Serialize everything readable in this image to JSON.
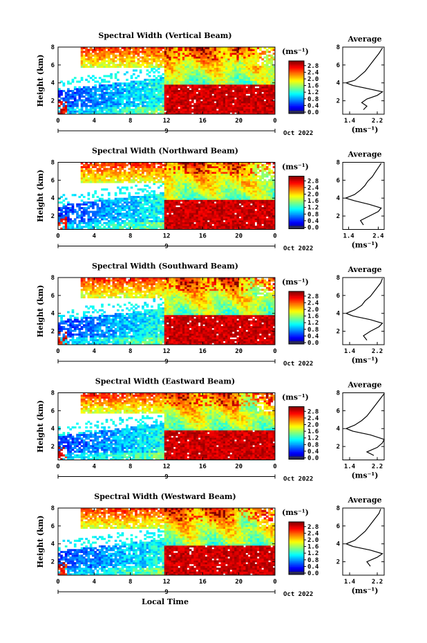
{
  "chart_data": [
    {
      "type": "heatmap",
      "title": "Spectral Width (Vertical Beam)",
      "ylabel": "Height (km)",
      "xlabel": "",
      "x_ticks": [
        "0",
        "4",
        "8",
        "12",
        "16",
        "20",
        "0"
      ],
      "y_ticks": [
        "2",
        "4",
        "6",
        "8"
      ],
      "ylim": [
        0.5,
        8
      ],
      "xlim": [
        0,
        24
      ],
      "date_marker": "9",
      "date_label": "Oct 2022",
      "colorbar": {
        "unit": "(ms⁻¹)",
        "ticks": [
          "0.0",
          "0.4",
          "0.8",
          "1.2",
          "1.6",
          "2.0",
          "2.4",
          "2.8"
        ],
        "range": [
          0,
          3.0
        ]
      },
      "average_profile": {
        "title": "Average",
        "xlabel": "(ms⁻¹)",
        "x_ticks": [
          "1.4",
          "2.2"
        ],
        "xlim": [
          1.2,
          2.4
        ],
        "y_ticks": [
          "2",
          "4",
          "6",
          "8"
        ],
        "points": [
          [
            1.8,
            1.0
          ],
          [
            1.9,
            1.4
          ],
          [
            1.75,
            1.8
          ],
          [
            1.9,
            2.2
          ],
          [
            2.2,
            2.6
          ],
          [
            2.35,
            3.0
          ],
          [
            2.0,
            3.3
          ],
          [
            1.5,
            3.7
          ],
          [
            1.3,
            4.0
          ],
          [
            1.55,
            4.3
          ],
          [
            1.7,
            4.8
          ],
          [
            1.85,
            5.3
          ],
          [
            1.95,
            5.8
          ],
          [
            2.05,
            6.3
          ],
          [
            2.15,
            6.8
          ],
          [
            2.25,
            7.3
          ],
          [
            2.35,
            7.9
          ]
        ]
      }
    },
    {
      "type": "heatmap",
      "title": "Spectral Width (Northward Beam)",
      "ylabel": "Height (km)",
      "xlabel": "",
      "x_ticks": [
        "0",
        "4",
        "8",
        "12",
        "16",
        "20",
        "0"
      ],
      "y_ticks": [
        "2",
        "4",
        "6",
        "8"
      ],
      "ylim": [
        0.5,
        8
      ],
      "xlim": [
        0,
        24
      ],
      "date_marker": "9",
      "date_label": "Oct 2022",
      "colorbar": {
        "unit": "(ms⁻¹)",
        "ticks": [
          "0.0",
          "0.4",
          "0.8",
          "1.2",
          "1.6",
          "2.0",
          "2.4",
          "2.8"
        ],
        "range": [
          0,
          3.0
        ]
      },
      "average_profile": {
        "title": "Average",
        "xlabel": "(ms⁻¹)",
        "x_ticks": [
          "1.4",
          "2.4"
        ],
        "xlim": [
          1.2,
          2.6
        ],
        "y_ticks": [
          "2",
          "4",
          "6",
          "8"
        ],
        "points": [
          [
            1.9,
            1.0
          ],
          [
            1.8,
            1.5
          ],
          [
            2.1,
            2.0
          ],
          [
            2.4,
            2.5
          ],
          [
            2.5,
            2.9
          ],
          [
            2.1,
            3.3
          ],
          [
            1.6,
            3.7
          ],
          [
            1.3,
            4.0
          ],
          [
            1.6,
            4.4
          ],
          [
            1.8,
            4.9
          ],
          [
            1.95,
            5.4
          ],
          [
            2.05,
            5.9
          ],
          [
            2.2,
            6.4
          ],
          [
            2.3,
            6.9
          ],
          [
            2.4,
            7.4
          ],
          [
            2.5,
            7.9
          ]
        ]
      }
    },
    {
      "type": "heatmap",
      "title": "Spectral Width (Southward Beam)",
      "ylabel": "Height (km)",
      "xlabel": "",
      "x_ticks": [
        "0",
        "4",
        "8",
        "12",
        "16",
        "20",
        "0"
      ],
      "y_ticks": [
        "2",
        "4",
        "6",
        "8"
      ],
      "ylim": [
        0.5,
        8
      ],
      "xlim": [
        0,
        24
      ],
      "date_marker": "9",
      "date_label": "Oct 2022",
      "colorbar": {
        "unit": "(ms⁻¹)",
        "ticks": [
          "0.0",
          "0.4",
          "0.8",
          "1.2",
          "1.6",
          "2.0",
          "2.4",
          "2.8"
        ],
        "range": [
          0,
          3.0
        ]
      },
      "average_profile": {
        "title": "Average",
        "xlabel": "(ms⁻¹)",
        "x_ticks": [
          "1.4",
          "2.2"
        ],
        "xlim": [
          1.2,
          2.4
        ],
        "y_ticks": [
          "2",
          "4",
          "6",
          "8"
        ],
        "points": [
          [
            1.9,
            1.0
          ],
          [
            1.8,
            1.5
          ],
          [
            2.0,
            2.0
          ],
          [
            2.25,
            2.5
          ],
          [
            2.35,
            2.9
          ],
          [
            2.0,
            3.3
          ],
          [
            1.5,
            3.7
          ],
          [
            1.3,
            4.0
          ],
          [
            1.55,
            4.4
          ],
          [
            1.75,
            4.9
          ],
          [
            1.85,
            5.4
          ],
          [
            2.0,
            5.9
          ],
          [
            2.1,
            6.4
          ],
          [
            2.2,
            6.9
          ],
          [
            2.3,
            7.4
          ],
          [
            2.35,
            7.9
          ]
        ]
      }
    },
    {
      "type": "heatmap",
      "title": "Spectral Width (Eastward Beam)",
      "ylabel": "Height (km)",
      "xlabel": "",
      "x_ticks": [
        "0",
        "4",
        "8",
        "12",
        "16",
        "20",
        "0"
      ],
      "y_ticks": [
        "2",
        "4",
        "6",
        "8"
      ],
      "ylim": [
        0.5,
        8
      ],
      "xlim": [
        0,
        24
      ],
      "date_marker": "9",
      "date_label": "Oct 2022",
      "colorbar": {
        "unit": "(ms⁻¹)",
        "ticks": [
          "0.0",
          "0.4",
          "0.8",
          "1.2",
          "1.6",
          "2.0",
          "2.4",
          "2.8"
        ],
        "range": [
          0,
          3.0
        ]
      },
      "average_profile": {
        "title": "Average",
        "xlabel": "(ms⁻¹)",
        "x_ticks": [
          "1.4",
          "2.2"
        ],
        "xlim": [
          1.2,
          2.4
        ],
        "y_ticks": [
          "2",
          "4",
          "6",
          "8"
        ],
        "points": [
          [
            2.1,
            1.0
          ],
          [
            1.9,
            1.4
          ],
          [
            2.2,
            1.9
          ],
          [
            2.35,
            2.4
          ],
          [
            2.4,
            2.8
          ],
          [
            2.0,
            3.3
          ],
          [
            1.5,
            3.7
          ],
          [
            1.3,
            4.0
          ],
          [
            1.55,
            4.4
          ],
          [
            1.75,
            4.9
          ],
          [
            1.9,
            5.4
          ],
          [
            2.0,
            5.9
          ],
          [
            2.1,
            6.4
          ],
          [
            2.2,
            6.9
          ],
          [
            2.3,
            7.4
          ],
          [
            2.4,
            7.9
          ]
        ]
      }
    },
    {
      "type": "heatmap",
      "title": "Spectral Width (Westward Beam)",
      "ylabel": "Height (km)",
      "xlabel": "Local Time",
      "x_ticks": [
        "0",
        "4",
        "8",
        "12",
        "16",
        "20",
        "0"
      ],
      "y_ticks": [
        "2",
        "4",
        "6",
        "8"
      ],
      "ylim": [
        0.5,
        8
      ],
      "xlim": [
        0,
        24
      ],
      "date_marker": "9",
      "date_label": "Oct 2022",
      "colorbar": {
        "unit": "(ms⁻¹)",
        "ticks": [
          "0.0",
          "0.4",
          "0.8",
          "1.2",
          "1.6",
          "2.0",
          "2.4",
          "2.8"
        ],
        "range": [
          0,
          3.0
        ]
      },
      "average_profile": {
        "title": "Average",
        "xlabel": "(ms⁻¹)",
        "x_ticks": [
          "1.4",
          "2.2"
        ],
        "xlim": [
          1.2,
          2.4
        ],
        "y_ticks": [
          "2",
          "4",
          "6",
          "8"
        ],
        "points": [
          [
            2.0,
            1.5
          ],
          [
            1.9,
            2.0
          ],
          [
            2.2,
            2.5
          ],
          [
            2.35,
            2.9
          ],
          [
            2.0,
            3.3
          ],
          [
            1.5,
            3.7
          ],
          [
            1.3,
            4.0
          ],
          [
            1.55,
            4.4
          ],
          [
            1.7,
            4.9
          ],
          [
            1.85,
            5.4
          ],
          [
            1.95,
            5.9
          ],
          [
            2.05,
            6.4
          ],
          [
            2.15,
            6.9
          ],
          [
            2.25,
            7.4
          ],
          [
            2.3,
            7.9
          ]
        ]
      }
    }
  ]
}
